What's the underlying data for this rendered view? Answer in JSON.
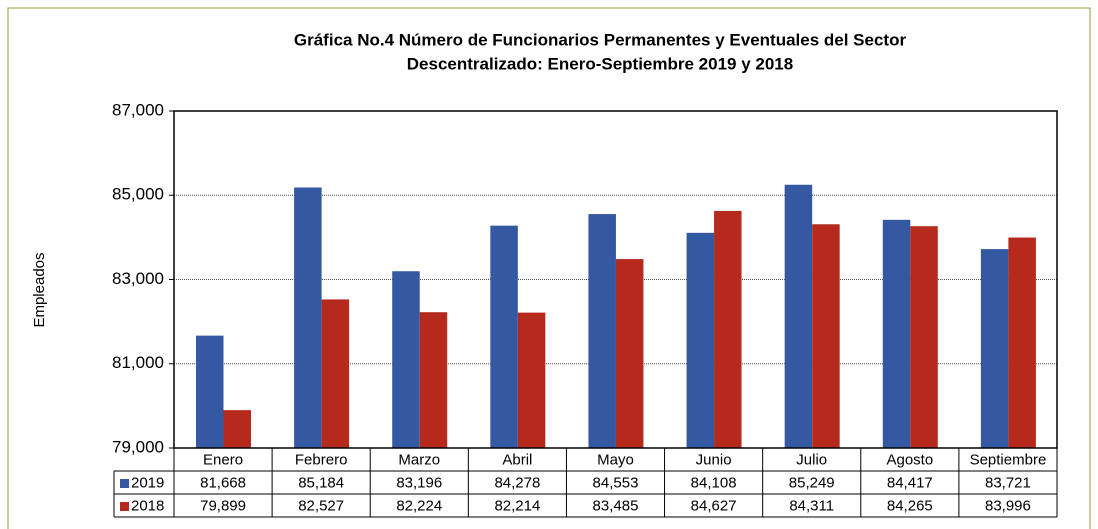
{
  "chart_data": {
    "type": "bar",
    "title": [
      "Gráfica No.4  Número de Funcionarios Permanentes y Eventuales del Sector",
      "Descentralizado: Enero-Septiembre 2019 y 2018"
    ],
    "y_label": "Empleados",
    "categories": [
      "Enero",
      "Febrero",
      "Marzo",
      "Abril",
      "Mayo",
      "Junio",
      "Julio",
      "Agosto",
      "Septiembre"
    ],
    "series": [
      {
        "name": "2019",
        "color": "#3458a2",
        "values": [
          81668,
          85184,
          83196,
          84278,
          84553,
          84108,
          85249,
          84417,
          83721
        ],
        "value_labels": [
          "81,668",
          "85,184",
          "83,196",
          "84,278",
          "84,553",
          "84,108",
          "85,249",
          "84,417",
          "83,721"
        ]
      },
      {
        "name": "2018",
        "color": "#b52a1c",
        "values": [
          79899,
          82527,
          82224,
          82214,
          83485,
          84627,
          84311,
          84265,
          83996
        ],
        "value_labels": [
          "79,899",
          "82,527",
          "82,224",
          "82,214",
          "83,485",
          "84,627",
          "84,311",
          "84,265",
          "83,996"
        ]
      }
    ],
    "ylim": [
      79000,
      87000
    ],
    "yticks": [
      {
        "value": 79000,
        "label": "79,000"
      },
      {
        "value": 81000,
        "label": "81,000"
      },
      {
        "value": 83000,
        "label": "83,000"
      },
      {
        "value": 85000,
        "label": "85,000"
      },
      {
        "value": 87000,
        "label": "87,000"
      }
    ],
    "grid": true
  }
}
